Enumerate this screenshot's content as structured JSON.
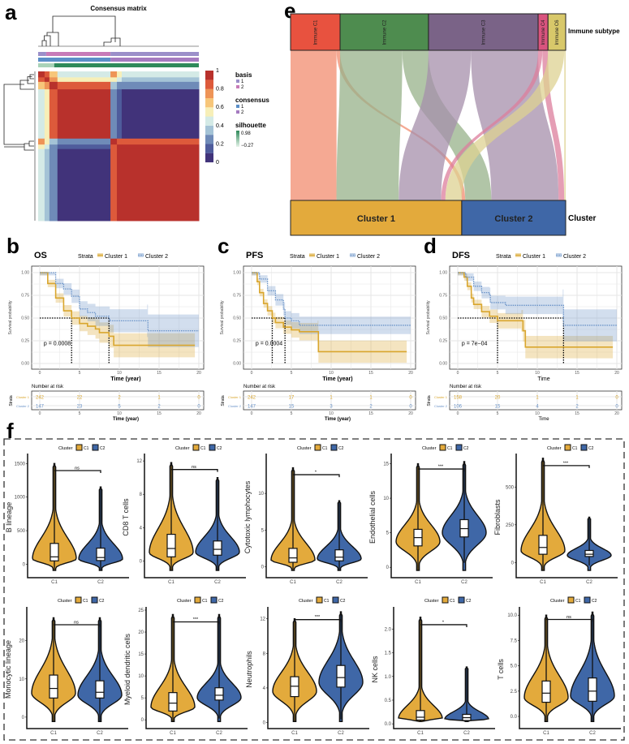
{
  "panel_labels": {
    "a": "a",
    "b": "b",
    "c": "c",
    "d": "d",
    "e": "e",
    "f": "f"
  },
  "violin_legend": {
    "title": "Cluster",
    "items": [
      "C1",
      "C2"
    ],
    "colors": [
      "#e3aa3c",
      "#3f67a7"
    ]
  },
  "chart_data": [
    {
      "panel": "a",
      "type": "heatmap",
      "title": "Consensus matrix",
      "colorbar_ticks": [
        "0",
        "0.2",
        "0.4",
        "0.6",
        "0.8",
        "1"
      ],
      "colorscale": [
        "#41337a",
        "#4f5c9c",
        "#6f8bb8",
        "#a4c3d6",
        "#d4eae6",
        "#f7efb8",
        "#f7c67a",
        "#ee9457",
        "#dd5a3b",
        "#b8312c"
      ],
      "matrix": [
        [
          0.95,
          0.85,
          0.65,
          0.4,
          0.7,
          0.55,
          0.45
        ],
        [
          0.85,
          0.95,
          0.75,
          0.5,
          0.55,
          0.45,
          0.35
        ],
        [
          0.65,
          0.75,
          0.92,
          0.85,
          0.3,
          0.2,
          0.2
        ],
        [
          0.4,
          0.5,
          0.85,
          1.0,
          0.28,
          0.15,
          0.05
        ],
        [
          0.7,
          0.55,
          0.3,
          0.28,
          0.95,
          0.85,
          0.8
        ],
        [
          0.55,
          0.45,
          0.2,
          0.15,
          0.85,
          0.95,
          0.9
        ],
        [
          0.45,
          0.35,
          0.2,
          0.05,
          0.8,
          0.9,
          1.0
        ]
      ],
      "annotations": {
        "basis": {
          "title": "basis",
          "items": [
            "1",
            "2"
          ],
          "colors": [
            "#9b8fc9",
            "#c77bb8"
          ]
        },
        "consensus": {
          "title": "consensus",
          "items": [
            "1",
            "2"
          ],
          "colors": [
            "#5b8fc8",
            "#a57bc0"
          ]
        },
        "silhouette": {
          "title": "silhouette",
          "max": "0.98",
          "min": "−0.27",
          "colors": [
            "#2f8a5a",
            "#e6f3ea"
          ]
        }
      }
    },
    {
      "panel": "e",
      "type": "alluvial",
      "top_axis": "Immune subtype",
      "bottom_axis": "Cluster",
      "top_nodes": [
        {
          "label": "Immune C1",
          "color": "#e8523f",
          "flow_color": "#f28c6f"
        },
        {
          "label": "Immune C2",
          "color": "#4e8c4f",
          "flow_color": "#97b289"
        },
        {
          "label": "Immune C3",
          "color": "#7a6387",
          "flow_color": "#a58fab"
        },
        {
          "label": "Immune C4",
          "color": "#d9547e",
          "flow_color": "#dc7d9c"
        },
        {
          "label": "Immune C6",
          "color": "#d8c86a",
          "flow_color": "#ddd192"
        }
      ],
      "bottom_nodes": [
        {
          "label": "Cluster 1",
          "color": "#e3aa3c"
        },
        {
          "label": "Cluster 2",
          "color": "#3f67a7"
        }
      ],
      "flows": [
        [
          65,
          5
        ],
        [
          88,
          37
        ],
        [
          60,
          95
        ],
        [
          6,
          8
        ],
        [
          23,
          2
        ]
      ]
    },
    {
      "panel": "b",
      "type": "line",
      "title": "OS",
      "legend_title": "Strata",
      "xlabel": "Time (year)",
      "ylabel": "Survival probability",
      "xticks": [
        "0",
        "5",
        "10",
        "15",
        "20"
      ],
      "yticks": [
        "0.00",
        "0.25",
        "0.50",
        "0.75",
        "1.00"
      ],
      "xlim": [
        0,
        20
      ],
      "ylim": [
        0,
        1
      ],
      "p_value": "p = 0.0008",
      "risk_table": {
        "title": "Number at risk",
        "row_label": "Strata",
        "xlabel": "Time (year)"
      },
      "series": [
        {
          "name": "Cluster 1",
          "color": "#d9a62e",
          "points": [
            [
              0,
              1
            ],
            [
              1,
              0.88
            ],
            [
              2,
              0.72
            ],
            [
              3,
              0.58
            ],
            [
              4,
              0.5
            ],
            [
              5,
              0.44
            ],
            [
              6,
              0.41
            ],
            [
              7,
              0.38
            ],
            [
              7.5,
              0.34
            ],
            [
              8.7,
              0.3
            ],
            [
              9.3,
              0.2
            ],
            [
              19.5,
              0.2
            ]
          ],
          "risk": [
            "242",
            "22",
            "2",
            "1",
            "0"
          ]
        },
        {
          "name": "Cluster 2",
          "color": "#6a93c8",
          "points": [
            [
              0,
              1
            ],
            [
              2,
              0.88
            ],
            [
              3,
              0.82
            ],
            [
              4,
              0.74
            ],
            [
              5,
              0.6
            ],
            [
              6,
              0.56
            ],
            [
              7,
              0.52
            ],
            [
              8.7,
              0.5
            ],
            [
              8.8,
              0.47
            ],
            [
              13.5,
              0.47
            ],
            [
              13.6,
              0.36
            ],
            [
              20,
              0.36
            ]
          ],
          "risk": [
            "147",
            "23",
            "5",
            "2",
            "0"
          ]
        }
      ]
    },
    {
      "panel": "c",
      "type": "line",
      "title": "PFS",
      "legend_title": "Strata",
      "xlabel": "Time (year)",
      "ylabel": "Survival probability",
      "xticks": [
        "0",
        "5",
        "10",
        "15",
        "20"
      ],
      "yticks": [
        "0.00",
        "0.25",
        "0.50",
        "0.75",
        "1.00"
      ],
      "xlim": [
        0,
        20
      ],
      "ylim": [
        0,
        1
      ],
      "p_value": "p = 0.0004",
      "risk_table": {
        "title": "Number at risk",
        "row_label": "Strata",
        "xlabel": "Time (year)"
      },
      "series": [
        {
          "name": "Cluster 1",
          "color": "#d9a62e",
          "points": [
            [
              0,
              1
            ],
            [
              0.7,
              0.9
            ],
            [
              1,
              0.78
            ],
            [
              1.5,
              0.66
            ],
            [
              2,
              0.58
            ],
            [
              2.6,
              0.5
            ],
            [
              3,
              0.45
            ],
            [
              4,
              0.4
            ],
            [
              5,
              0.37
            ],
            [
              6,
              0.35
            ],
            [
              8.3,
              0.35
            ],
            [
              8.4,
              0.13
            ],
            [
              19.5,
              0.13
            ]
          ],
          "risk": [
            "242",
            "17",
            "1",
            "1",
            "0"
          ]
        },
        {
          "name": "Cluster 2",
          "color": "#6a93c8",
          "points": [
            [
              0,
              1
            ],
            [
              1,
              0.93
            ],
            [
              2,
              0.8
            ],
            [
              3,
              0.7
            ],
            [
              4,
              0.6
            ],
            [
              4.2,
              0.5
            ],
            [
              5,
              0.47
            ],
            [
              6,
              0.42
            ],
            [
              20,
              0.42
            ]
          ],
          "risk": [
            "147",
            "15",
            "3",
            "2",
            "0"
          ]
        }
      ]
    },
    {
      "panel": "d",
      "type": "line",
      "title": "DFS",
      "legend_title": "Strata",
      "xlabel": "Time",
      "ylabel": "Survival probability",
      "xticks": [
        "0",
        "5",
        "10",
        "15",
        "20"
      ],
      "yticks": [
        "0.00",
        "0.25",
        "0.50",
        "0.75",
        "1.00"
      ],
      "xlim": [
        0,
        20
      ],
      "ylim": [
        0,
        1
      ],
      "p_value": "p = 7e−04",
      "risk_table": {
        "title": "Number at risk",
        "row_label": "Strata",
        "xlabel": "Time"
      },
      "series": [
        {
          "name": "Cluster 1",
          "color": "#d9a62e",
          "points": [
            [
              0,
              1
            ],
            [
              0.8,
              0.95
            ],
            [
              1.2,
              0.85
            ],
            [
              1.7,
              0.72
            ],
            [
              2,
              0.65
            ],
            [
              3,
              0.57
            ],
            [
              4,
              0.52
            ],
            [
              5,
              0.47
            ],
            [
              8,
              0.47
            ],
            [
              8.2,
              0.36
            ],
            [
              8.5,
              0.18
            ],
            [
              19.5,
              0.18
            ]
          ],
          "risk": [
            "158",
            "20",
            "1",
            "1",
            "0"
          ]
        },
        {
          "name": "Cluster 2",
          "color": "#6a93c8",
          "points": [
            [
              0,
              1
            ],
            [
              1,
              0.95
            ],
            [
              2,
              0.85
            ],
            [
              3,
              0.78
            ],
            [
              4,
              0.76
            ],
            [
              4.1,
              0.67
            ],
            [
              6,
              0.64
            ],
            [
              13.2,
              0.64
            ],
            [
              13.3,
              0.42
            ],
            [
              20,
              0.42
            ]
          ],
          "risk": [
            "106",
            "15",
            "4",
            "2",
            "0"
          ]
        }
      ]
    },
    {
      "panel": "f",
      "type": "violin",
      "ylabel": "B lineage",
      "yticks": [
        "0",
        "500",
        "1000",
        "1500"
      ],
      "ylim": [
        -200,
        1600
      ],
      "significance": "ns",
      "xticks": [
        "C1",
        "C2"
      ],
      "groups": [
        {
          "q1": 50,
          "median": 110,
          "q3": 310,
          "max": 1500
        },
        {
          "q1": 55,
          "median": 100,
          "q3": 240,
          "max": 1150
        }
      ]
    },
    {
      "panel": "f",
      "type": "violin",
      "ylabel": "CD8 T cells",
      "yticks": [
        "0",
        "4",
        "8",
        "12"
      ],
      "ylim": [
        -2,
        12.5
      ],
      "significance": "ns",
      "xticks": [
        "C1",
        "C2"
      ],
      "groups": [
        {
          "q1": 0.5,
          "median": 1.5,
          "q3": 3.2,
          "max": 11.8
        },
        {
          "q1": 0.7,
          "median": 1.4,
          "q3": 2.4,
          "max": 10
        }
      ]
    },
    {
      "panel": "f",
      "type": "violin",
      "ylabel": "Cytotoxic lymphocytes",
      "yticks": [
        "0",
        "5",
        "10"
      ],
      "ylim": [
        -1.5,
        15
      ],
      "significance": "*",
      "xticks": [
        "C1",
        "C2"
      ],
      "groups": [
        {
          "q1": 0.6,
          "median": 1.2,
          "q3": 2.5,
          "max": 13.5
        },
        {
          "q1": 0.8,
          "median": 1.3,
          "q3": 2.3,
          "max": 9
        }
      ]
    },
    {
      "panel": "f",
      "type": "violin",
      "ylabel": "Endothelial cells",
      "yticks": [
        "0",
        "5",
        "10",
        "15"
      ],
      "ylim": [
        -1.5,
        16
      ],
      "significance": "***",
      "xticks": [
        "C1",
        "C2"
      ],
      "groups": [
        {
          "q1": 3.1,
          "median": 4.3,
          "q3": 5.5,
          "max": 15
        },
        {
          "q1": 4.4,
          "median": 5.6,
          "q3": 6.9,
          "max": 15.3
        }
      ]
    },
    {
      "panel": "f",
      "type": "violin",
      "ylabel": "Fibroblasts",
      "yticks": [
        "0",
        "250",
        "500"
      ],
      "ylim": [
        -100,
        700
      ],
      "significance": "***",
      "xticks": [
        "C1",
        "C2"
      ],
      "groups": [
        {
          "q1": 55,
          "median": 100,
          "q3": 180,
          "max": 690
        },
        {
          "q1": 40,
          "median": 55,
          "q3": 80,
          "max": 300
        }
      ]
    },
    {
      "panel": "f",
      "type": "violin",
      "ylabel": "Monocytic lineage",
      "yticks": [
        "0",
        "10",
        "20"
      ],
      "ylim": [
        -3,
        28
      ],
      "significance": "ns",
      "xticks": [
        "C1",
        "C2"
      ],
      "groups": [
        {
          "q1": 5,
          "median": 7.5,
          "q3": 11,
          "max": 26
        },
        {
          "q1": 5,
          "median": 6.5,
          "q3": 9.5,
          "max": 26
        }
      ]
    },
    {
      "panel": "f",
      "type": "violin",
      "ylabel": "Myeloid dendritic cells",
      "yticks": [
        "0",
        "5",
        "10",
        "15",
        "20",
        "25"
      ],
      "ylim": [
        -2,
        25
      ],
      "significance": "***",
      "xticks": [
        "C1",
        "C2"
      ],
      "groups": [
        {
          "q1": 2,
          "median": 3.8,
          "q3": 6.2,
          "max": 24
        },
        {
          "q1": 4.5,
          "median": 5.6,
          "q3": 7.3,
          "max": 24
        }
      ]
    },
    {
      "panel": "f",
      "type": "violin",
      "ylabel": "Neutrophils",
      "yticks": [
        "0",
        "4",
        "8",
        "12"
      ],
      "ylim": [
        -0.7,
        13
      ],
      "significance": "***",
      "xticks": [
        "C1",
        "C2"
      ],
      "groups": [
        {
          "q1": 3,
          "median": 4.2,
          "q3": 5.3,
          "max": 12
        },
        {
          "q1": 4.1,
          "median": 5.2,
          "q3": 6.6,
          "max": 12.8
        }
      ]
    },
    {
      "panel": "f",
      "type": "violin",
      "ylabel": "NK cells",
      "yticks": [
        "0.0",
        "0.5",
        "1.0",
        "1.5",
        "2.0"
      ],
      "ylim": [
        -0.1,
        2.4
      ],
      "significance": "*",
      "xticks": [
        "C1",
        "C2"
      ],
      "groups": [
        {
          "q1": 0.08,
          "median": 0.14,
          "q3": 0.28,
          "max": 2.25
        },
        {
          "q1": 0.07,
          "median": 0.13,
          "q3": 0.2,
          "max": 1.2
        }
      ]
    },
    {
      "panel": "f",
      "type": "violin",
      "ylabel": "T cells",
      "yticks": [
        "0.0",
        "2.5",
        "5.0",
        "7.5",
        "10.0"
      ],
      "ylim": [
        -1.2,
        10.5
      ],
      "significance": "ns",
      "xticks": [
        "C1",
        "C2"
      ],
      "groups": [
        {
          "q1": 1.4,
          "median": 2.3,
          "q3": 3.5,
          "max": 10
        },
        {
          "q1": 1.5,
          "median": 2.5,
          "q3": 3.8,
          "max": 10.3
        }
      ]
    }
  ]
}
